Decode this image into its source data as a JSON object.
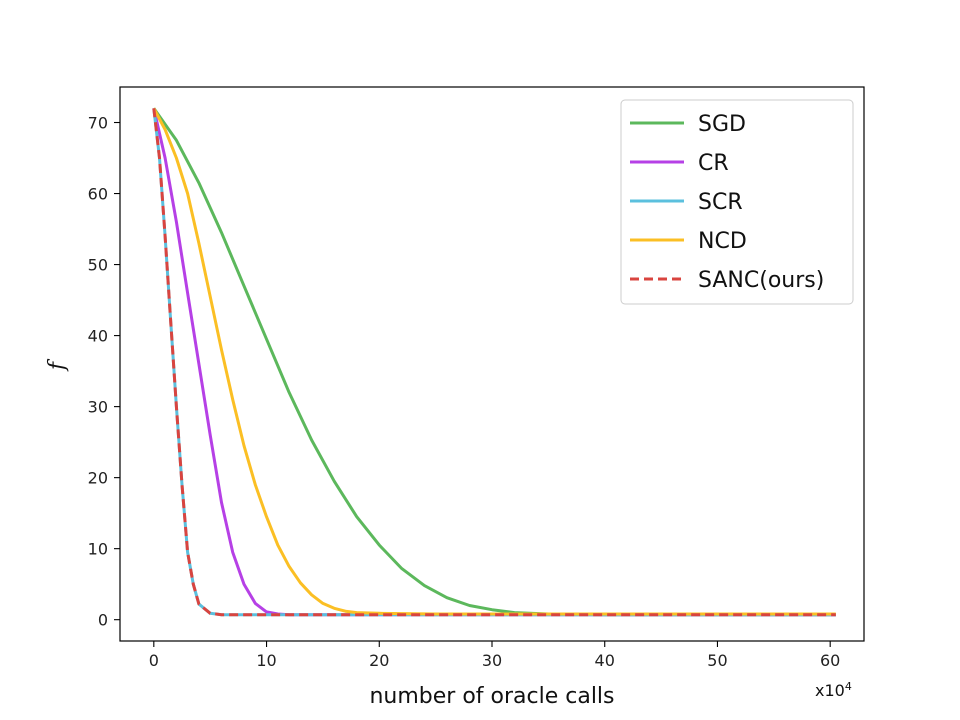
{
  "chart_data": {
    "type": "line",
    "xlabel": "number of oracle calls",
    "ylabel": "f",
    "x_multiplier": "x10",
    "x_multiplier_exp": "4",
    "xlim": [
      -3,
      63
    ],
    "ylim": [
      -3,
      75
    ],
    "xticks": [
      0,
      10,
      20,
      30,
      40,
      50,
      60
    ],
    "yticks": [
      0,
      10,
      20,
      30,
      40,
      50,
      60,
      70
    ],
    "legend_position": "top-right",
    "grid": false,
    "series": [
      {
        "name": "SGD",
        "color": "#5cb85c",
        "style": "solid",
        "x": [
          0,
          2,
          4,
          6,
          8,
          10,
          12,
          14,
          16,
          18,
          20,
          22,
          24,
          26,
          28,
          30,
          32,
          35,
          40,
          50,
          60.5
        ],
        "y": [
          72,
          67.5,
          61.5,
          54.5,
          47,
          39.5,
          32,
          25.3,
          19.5,
          14.5,
          10.5,
          7.2,
          4.8,
          3.1,
          2,
          1.4,
          1,
          0.8,
          0.7,
          0.7,
          0.7
        ]
      },
      {
        "name": "CR",
        "color": "#b640e6",
        "style": "solid",
        "x": [
          0,
          1,
          2,
          3,
          4,
          5,
          6,
          7,
          8,
          9,
          10,
          11,
          12,
          15,
          20,
          30,
          40,
          50,
          60.5
        ],
        "y": [
          72,
          65,
          56,
          46,
          36,
          26,
          16.5,
          9.5,
          5,
          2.3,
          1.1,
          0.8,
          0.7,
          0.7,
          0.7,
          0.7,
          0.7,
          0.7,
          0.7
        ]
      },
      {
        "name": "SCR",
        "color": "#5bc0de",
        "style": "solid",
        "x": [
          0,
          0.5,
          1,
          1.5,
          2,
          2.5,
          3,
          3.5,
          4,
          5,
          6,
          10,
          20,
          30,
          40,
          50,
          60.5
        ],
        "y": [
          72,
          65,
          54,
          42,
          30,
          19,
          9.5,
          5,
          2.2,
          0.9,
          0.7,
          0.7,
          0.7,
          0.7,
          0.7,
          0.7,
          0.7
        ]
      },
      {
        "name": "NCD",
        "color": "#fbbf24",
        "style": "solid",
        "x": [
          0,
          1,
          2,
          3,
          4,
          5,
          6,
          7,
          8,
          9,
          10,
          11,
          12,
          13,
          14,
          15,
          16,
          17,
          18,
          20,
          25,
          30,
          40,
          50,
          60.5
        ],
        "y": [
          72,
          69,
          65,
          60,
          53,
          45.5,
          38,
          31,
          24.5,
          19,
          14.5,
          10.5,
          7.5,
          5.2,
          3.5,
          2.3,
          1.6,
          1.2,
          1,
          0.9,
          0.8,
          0.8,
          0.8,
          0.8,
          0.8
        ]
      },
      {
        "name": "SANC(ours)",
        "color": "#d9443f",
        "style": "dashed",
        "x": [
          0,
          0.5,
          1,
          1.5,
          2,
          2.5,
          3,
          3.5,
          4,
          5,
          6,
          10,
          20,
          30,
          40,
          50,
          60.5
        ],
        "y": [
          72,
          65,
          54,
          42,
          30,
          19,
          9.5,
          5,
          2.2,
          0.9,
          0.7,
          0.7,
          0.7,
          0.7,
          0.7,
          0.7,
          0.7
        ]
      }
    ]
  }
}
